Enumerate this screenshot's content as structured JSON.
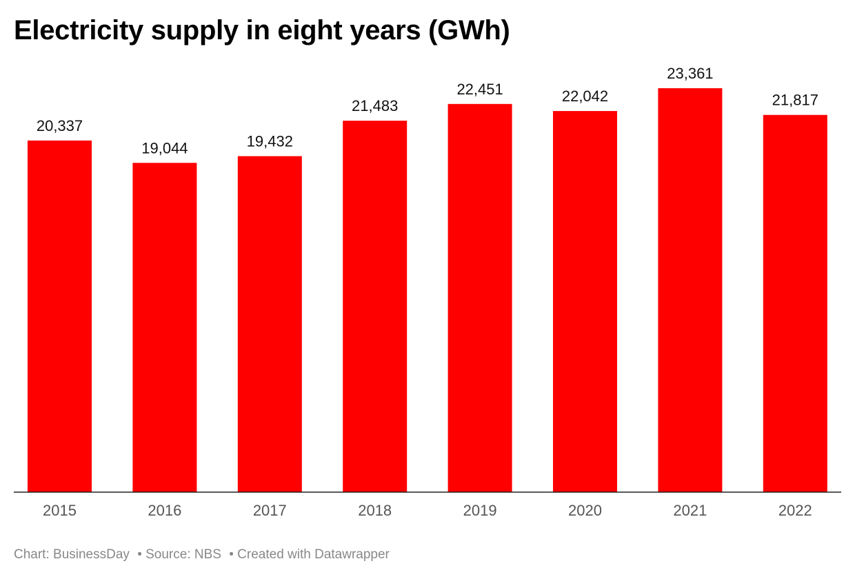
{
  "chart_data": {
    "type": "bar",
    "title": "Electricity supply in eight years (GWh)",
    "categories": [
      "2015",
      "2016",
      "2017",
      "2018",
      "2019",
      "2020",
      "2021",
      "2022"
    ],
    "values": [
      20337,
      19044,
      19432,
      21483,
      22451,
      22042,
      23361,
      21817
    ],
    "labels": [
      "20,337",
      "19,044",
      "19,432",
      "21,483",
      "22,451",
      "22,042",
      "23,361",
      "21,817"
    ],
    "xlabel": "",
    "ylabel": "",
    "ylim": [
      0,
      23361
    ],
    "grid": false,
    "bar_color": "#ff0000"
  },
  "footer": {
    "chart": "Chart: BusinessDay",
    "source": "• Source: NBS",
    "created": "• Created with Datawrapper"
  }
}
